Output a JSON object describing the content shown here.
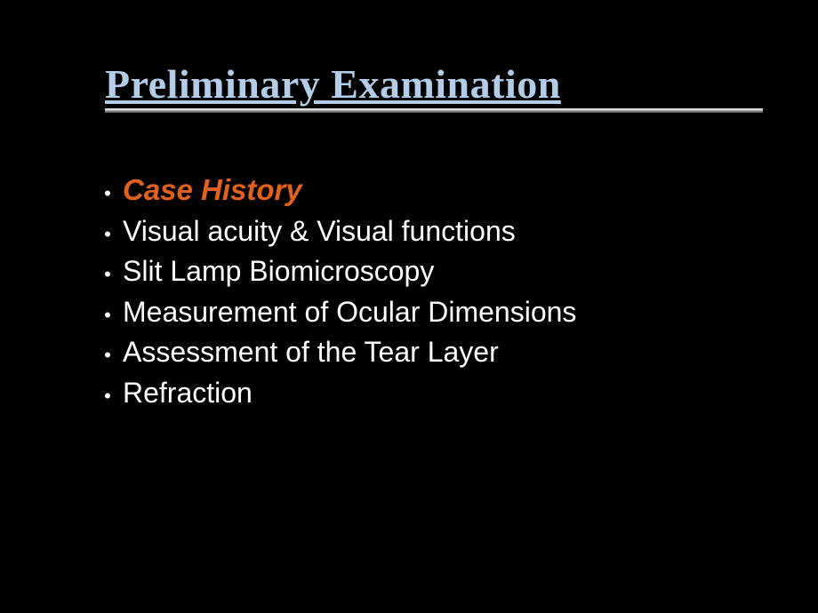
{
  "slide": {
    "title": "Preliminary Examination",
    "title_color": "#b3cde8",
    "title_font_family": "Times New Roman",
    "title_font_size": 46,
    "title_font_weight": "bold",
    "title_underline": true,
    "background_color": "#000000",
    "rule_gradient_start": "#ffffff",
    "rule_gradient_end": "#404244",
    "bullets": [
      {
        "text": "Case History",
        "color": "#e3611c",
        "italic": true,
        "bold": true,
        "font_size": 33
      },
      {
        "text": "Visual acuity & Visual functions",
        "color": "#ffffff",
        "italic": false,
        "bold": false,
        "font_size": 32
      },
      {
        "text": "Slit Lamp Biomicroscopy",
        "color": "#ffffff",
        "italic": false,
        "bold": false,
        "font_size": 32
      },
      {
        "text": "Measurement of Ocular Dimensions",
        "color": "#ffffff",
        "italic": false,
        "bold": false,
        "font_size": 32
      },
      {
        "text": "Assessment of the Tear Layer",
        "color": "#ffffff",
        "italic": false,
        "bold": false,
        "font_size": 32
      },
      {
        "text": "Refraction",
        "color": "#ffffff",
        "italic": false,
        "bold": false,
        "font_size": 32
      }
    ],
    "bullet_marker": "•",
    "bullet_marker_color": "#ffffff",
    "bullet_font_family": "Arial"
  }
}
